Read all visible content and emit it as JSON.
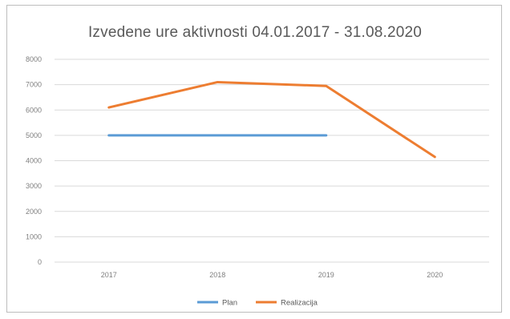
{
  "chart_data": {
    "type": "line",
    "title": "Izvedene ure aktivnosti 04.01.2017 - 31.08.2020",
    "categories": [
      "2017",
      "2018",
      "2019",
      "2020"
    ],
    "ylim": [
      0,
      8000
    ],
    "yticks": [
      "0",
      "1000",
      "2000",
      "3000",
      "4000",
      "5000",
      "6000",
      "7000",
      "8000"
    ],
    "grid": true,
    "legend_position": "bottom",
    "series": [
      {
        "name": "Plan",
        "color": "#5b9bd5",
        "values": [
          5000,
          5000,
          5000,
          null
        ]
      },
      {
        "name": "Realizacija",
        "color": "#ed7d31",
        "values": [
          6100,
          7100,
          6950,
          4150
        ]
      }
    ]
  }
}
